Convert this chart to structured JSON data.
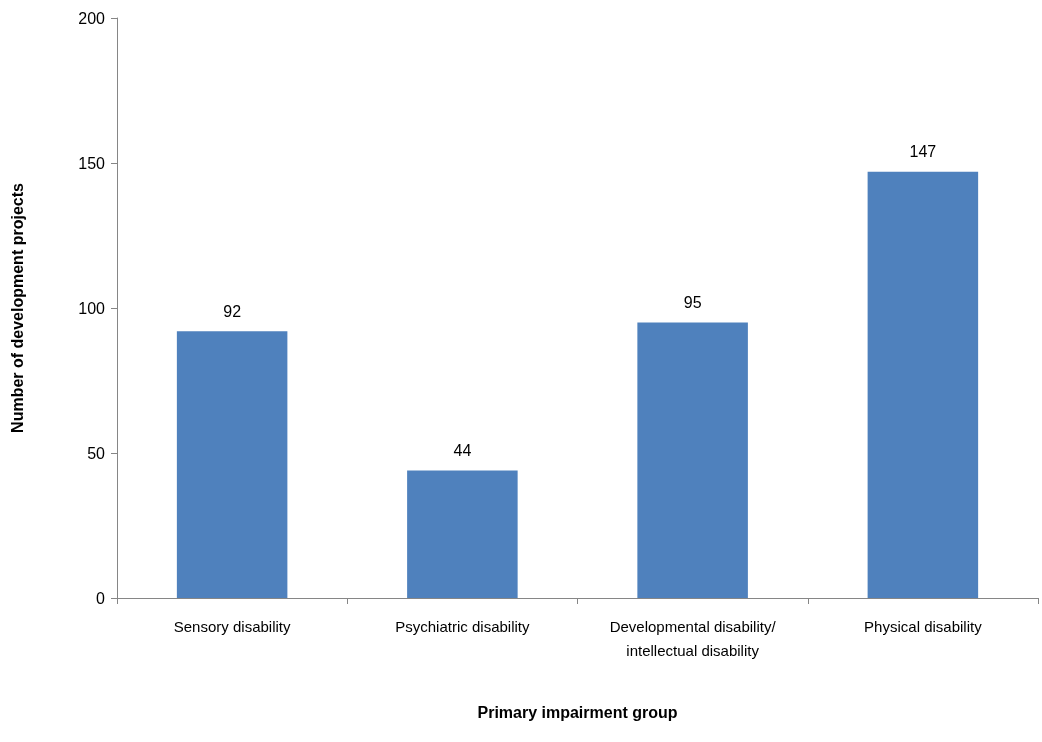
{
  "chart_data": {
    "type": "bar",
    "xlabel": "Primary impairment group",
    "ylabel": "Number of development projects",
    "categories": [
      "Sensory disability",
      "Psychiatric disability",
      "Developmental disability/intellectual disability",
      "Physical disability"
    ],
    "values": [
      92,
      44,
      95,
      147
    ],
    "color": "#4f81bd",
    "ylim": [
      0,
      200
    ],
    "yticks": [
      0,
      50,
      100,
      150,
      200
    ],
    "grid": false,
    "data_labels": true
  }
}
